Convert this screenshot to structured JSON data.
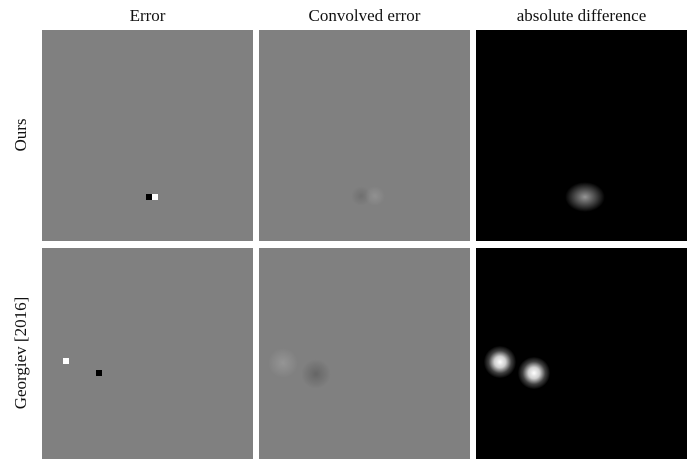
{
  "figure": {
    "columns": [
      "Error",
      "Convolved error",
      "absolute difference"
    ],
    "rows": [
      "Ours",
      "Georgiev [2016]"
    ]
  }
}
